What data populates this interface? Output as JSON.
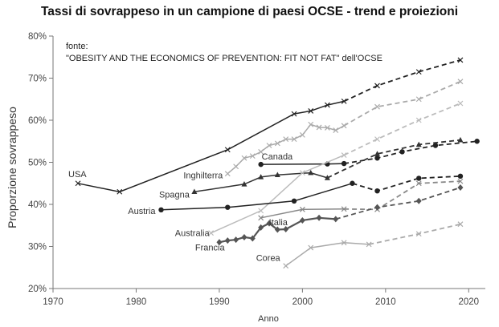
{
  "chart_data": {
    "type": "line",
    "title": "Tassi di sovrappeso in un campione di paesi OCSE  - trend e proiezioni",
    "xlabel": "Anno",
    "ylabel": "Proporzione sovrappeso",
    "xlim": [
      1970,
      2022
    ],
    "ylim": [
      20,
      80
    ],
    "xticks": [
      "1970",
      "1980",
      "1990",
      "2000",
      "2010",
      "2020"
    ],
    "yticks": [
      "20%",
      "30%",
      "40%",
      "50%",
      "60%",
      "70%",
      "80%"
    ],
    "grid": false,
    "annotation": {
      "line1": "fonte:",
      "line2": "\"OBESITY AND THE ECONOMICS OF PREVENTION: FIT NOT FAT\" dell'OCSE"
    },
    "series": [
      {
        "name": "USA",
        "color": "#222222",
        "marker": "x",
        "observed": [
          [
            1973,
            45
          ],
          [
            1978,
            43
          ],
          [
            1991,
            53
          ],
          [
            1999,
            61.5
          ],
          [
            2001,
            62.2
          ],
          [
            2003,
            63.6
          ],
          [
            2005,
            64.5
          ]
        ],
        "projected": [
          [
            2005,
            64.5
          ],
          [
            2009,
            68.2
          ],
          [
            2014,
            71.5
          ],
          [
            2019,
            74.3
          ]
        ]
      },
      {
        "name": "Inghilterra",
        "color": "#aaaaaa",
        "marker": "x",
        "observed": [
          [
            1991,
            47.3
          ],
          [
            1992,
            49
          ],
          [
            1993,
            51
          ],
          [
            1994,
            51.5
          ],
          [
            1995,
            52.5
          ],
          [
            1996,
            54
          ],
          [
            1997,
            54.5
          ],
          [
            1998,
            55.5
          ],
          [
            1999,
            55.5
          ],
          [
            2000,
            56.5
          ],
          [
            2001,
            59
          ],
          [
            2002,
            58.3
          ],
          [
            2003,
            58.2
          ],
          [
            2004,
            57.6
          ],
          [
            2005,
            58.7
          ]
        ],
        "projected": [
          [
            2005,
            58.7
          ],
          [
            2009,
            63.2
          ],
          [
            2014,
            65
          ],
          [
            2019,
            69.2
          ]
        ]
      },
      {
        "name": "Canada",
        "color": "#222222",
        "marker": "circle",
        "observed": [
          [
            1995,
            49.5
          ],
          [
            2003,
            49.6
          ],
          [
            2005,
            49.7
          ]
        ],
        "projected": [
          [
            2005,
            49.7
          ],
          [
            2009,
            51
          ],
          [
            2012,
            52.5
          ],
          [
            2016,
            54
          ],
          [
            2021,
            55
          ]
        ]
      },
      {
        "name": "Spagna",
        "color": "#333333",
        "marker": "triangle",
        "observed": [
          [
            1987,
            43
          ],
          [
            1993,
            44.8
          ],
          [
            1995,
            46.5
          ],
          [
            1997,
            47
          ],
          [
            2001,
            47.5
          ],
          [
            2003,
            46.3
          ]
        ],
        "projected": [
          [
            2003,
            46.3
          ],
          [
            2009,
            52
          ],
          [
            2014,
            54.2
          ],
          [
            2019,
            55.3
          ]
        ]
      },
      {
        "name": "Australia",
        "color": "#bbbbbb",
        "marker": "x",
        "observed": [
          [
            1989,
            33.2
          ],
          [
            1995,
            38.5
          ],
          [
            2000,
            47.5
          ],
          [
            2005,
            51.7
          ]
        ],
        "projected": [
          [
            2005,
            51.7
          ],
          [
            2009,
            55.5
          ],
          [
            2014,
            60
          ],
          [
            2019,
            64
          ]
        ]
      },
      {
        "name": "Austria",
        "color": "#222222",
        "marker": "circle",
        "observed": [
          [
            1983,
            38.7
          ],
          [
            1991,
            39.3
          ],
          [
            1999,
            40.8
          ],
          [
            2006,
            45
          ]
        ],
        "projected": [
          [
            2006,
            45
          ],
          [
            2009,
            43.2
          ],
          [
            2014,
            46.2
          ],
          [
            2019,
            46.7
          ]
        ]
      },
      {
        "name": "Italia",
        "color": "#888888",
        "marker": "x",
        "observed": [
          [
            1995,
            36.8
          ],
          [
            2000,
            38.8
          ],
          [
            2005,
            38.9
          ]
        ],
        "projected": [
          [
            2005,
            38.9
          ],
          [
            2009,
            38.8
          ],
          [
            2014,
            45
          ],
          [
            2019,
            45.5
          ]
        ]
      },
      {
        "name": "Francia",
        "color": "#555555",
        "marker": "diamond",
        "observed": [
          [
            1990,
            31
          ],
          [
            1991,
            31.4
          ],
          [
            1992,
            31.6
          ],
          [
            1993,
            32.2
          ],
          [
            1994,
            31.9
          ],
          [
            1995,
            34.5
          ],
          [
            1996,
            35.5
          ],
          [
            1997,
            34
          ],
          [
            1998,
            34.1
          ],
          [
            2000,
            36.2
          ],
          [
            2002,
            36.8
          ],
          [
            2004,
            36.5
          ]
        ],
        "projected": [
          [
            2004,
            36.5
          ],
          [
            2009,
            39.3
          ],
          [
            2014,
            40.8
          ],
          [
            2019,
            44
          ]
        ]
      },
      {
        "name": "Corea",
        "color": "#aaaaaa",
        "marker": "x",
        "observed": [
          [
            1998,
            25.4
          ],
          [
            2001,
            29.7
          ],
          [
            2005,
            30.9
          ],
          [
            2008,
            30.5
          ]
        ],
        "projected": [
          [
            2008,
            30.5
          ],
          [
            2014,
            33
          ],
          [
            2019,
            35.3
          ]
        ]
      }
    ]
  }
}
